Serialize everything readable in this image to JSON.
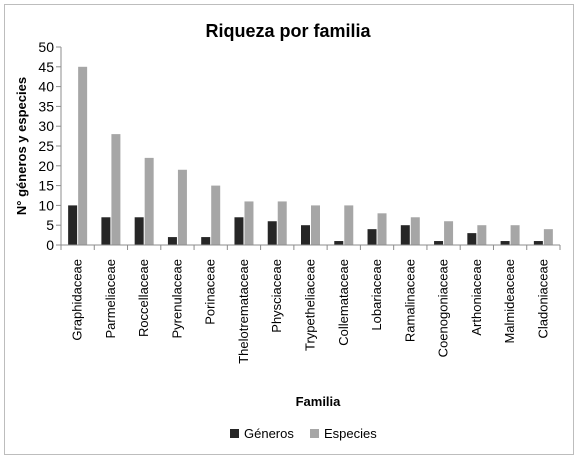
{
  "chart_data": {
    "type": "bar",
    "title": "Riqueza por familia",
    "xlabel": "Familia",
    "ylabel": "N° géneros y especies",
    "ylim": [
      0,
      50
    ],
    "yticks": [
      0,
      5,
      10,
      15,
      20,
      25,
      30,
      35,
      40,
      45,
      50
    ],
    "grid": false,
    "legend_position": "bottom",
    "categories": [
      "Graphidaceae",
      "Parmeliaceae",
      "Roccellaceae",
      "Pyrenulaceae",
      "Porinaceae",
      "Thelotremataceae",
      "Physciaceae",
      "Trypetheliaceae",
      "Collemataceae",
      "Lobariaceae",
      "Ramalinaceae",
      "Coenogoniaceae",
      "Arthoniaceae",
      "Malmideaceae",
      "Cladoniaceae"
    ],
    "series": [
      {
        "name": "Géneros",
        "color": "#262626",
        "values": [
          10,
          7,
          7,
          2,
          2,
          7,
          6,
          5,
          1,
          4,
          5,
          1,
          3,
          1,
          1
        ]
      },
      {
        "name": "Especies",
        "color": "#a6a6a6",
        "values": [
          45,
          28,
          22,
          19,
          15,
          11,
          11,
          10,
          10,
          8,
          7,
          6,
          5,
          5,
          4
        ]
      }
    ]
  }
}
